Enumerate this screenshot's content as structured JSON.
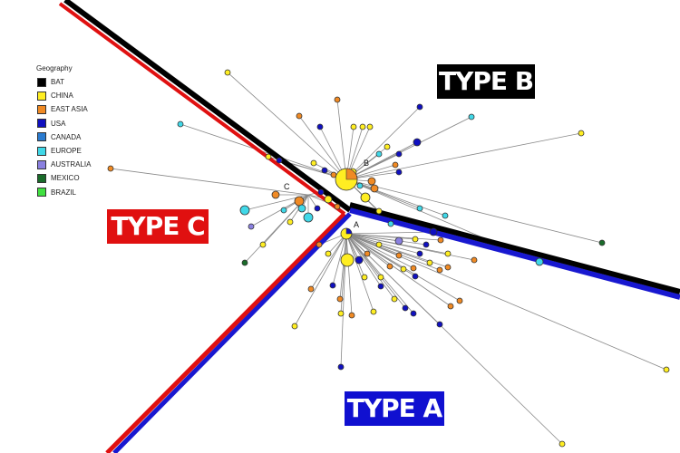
{
  "legend": {
    "title": "Geography",
    "items": [
      {
        "label": "BAT",
        "color": "#000000"
      },
      {
        "label": "CHINA",
        "color": "#ffee22"
      },
      {
        "label": "EAST ASIA",
        "color": "#f08a24"
      },
      {
        "label": "USA",
        "color": "#1010c0"
      },
      {
        "label": "CANADA",
        "color": "#2a7bd0"
      },
      {
        "label": "EUROPE",
        "color": "#40d8e8"
      },
      {
        "label": "AUSTRALIA",
        "color": "#8a80e0"
      },
      {
        "label": "MEXICO",
        "color": "#1a6b2a"
      },
      {
        "label": "BRAZIL",
        "color": "#40e040"
      }
    ]
  },
  "types": {
    "b": {
      "label": "TYPE B",
      "bg": "#000000"
    },
    "c": {
      "label": "TYPE C",
      "bg": "#e01010"
    },
    "a": {
      "label": "TYPE A",
      "bg": "#1010d0"
    }
  },
  "node_labels": {
    "a": "A",
    "b": "B",
    "c": "C"
  },
  "colors": {
    "bat_line": "#000000",
    "type_c_line": "#e01010",
    "type_a_line": "#1818d0",
    "type_b_line": "#1818d0"
  }
}
